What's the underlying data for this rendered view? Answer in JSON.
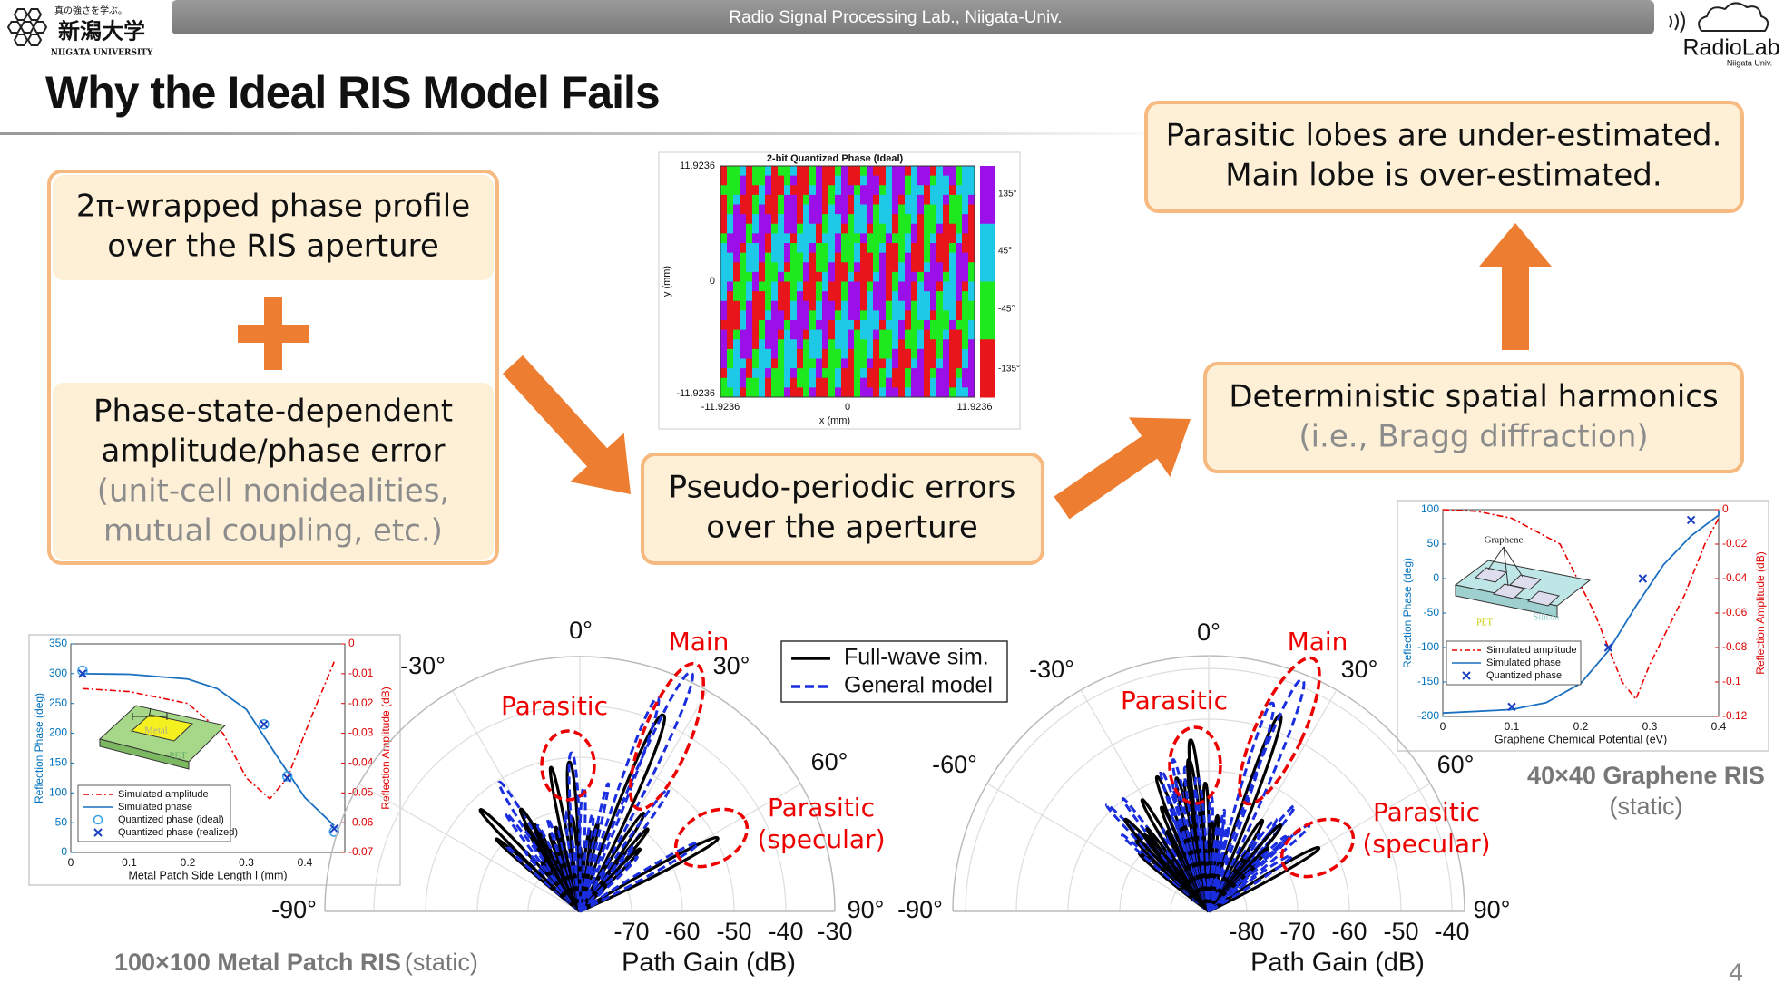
{
  "header": {
    "banner": "Radio Signal Processing Lab., Niigata-Univ.",
    "univ_motto": "真の強さを学ぶ。",
    "univ_name": "新潟大学",
    "univ_name_en": "NIIGATA UNIVERSITY",
    "lab_logo": "RadioLab",
    "lab_logo_sub": "Niigata Univ."
  },
  "title": "Why the Ideal RIS Model Fails",
  "boxes": {
    "profile": [
      "2π-wrapped phase profile",
      "over the RIS aperture"
    ],
    "error": [
      "Phase-state-dependent",
      "amplitude/phase error"
    ],
    "error_note": [
      "(unit-cell nonidealities,",
      "mutual coupling, etc.)"
    ],
    "pseudo": [
      "Pseudo-periodic errors",
      "over the aperture"
    ],
    "harmonics": "Deterministic spatial harmonics",
    "harmonics_note": "(i.e., Bragg diffraction)",
    "conclusion": [
      "Parasitic lobes are under-estimated.",
      "Main lobe is over-estimated."
    ]
  },
  "phase_map": {
    "title": "2-bit Quantized Phase (Ideal)",
    "x_label": "x (mm)",
    "y_label": "y (mm)",
    "y_ticks": [
      "11.9236",
      "0",
      "-11.9236"
    ],
    "x_ticks": [
      "-11.9236",
      "0",
      "11.9236"
    ],
    "colorbar_ticks": [
      "135°",
      "45°",
      "-45°",
      "-135°"
    ]
  },
  "metal_inset": {
    "y_ticks": [
      "350",
      "300",
      "250",
      "200",
      "150",
      "100",
      "50",
      "0"
    ],
    "y2_ticks": [
      "0",
      "-0.01",
      "-0.02",
      "-0.03",
      "-0.04",
      "-0.05",
      "-0.06",
      "-0.07"
    ],
    "x_ticks": [
      "0",
      "0.1",
      "0.2",
      "0.3",
      "0.4"
    ],
    "x_label": "Metal Patch Side Length l (mm)",
    "y_label": "Reflection Phase (deg)",
    "y2_label": "Reflection Amplitude (dB)",
    "legend": [
      "Simulated amplitude",
      "Simulated phase",
      "Quantized phase (ideal)",
      "Quantized phase (realized)"
    ],
    "drawing": {
      "metal": "Metal",
      "substrate": "PET",
      "length": "l"
    }
  },
  "graphene_inset": {
    "y_ticks": [
      "100",
      "50",
      "0",
      "-50",
      "-100",
      "-150",
      "-200"
    ],
    "y2_ticks": [
      "0",
      "-0.02",
      "-0.04",
      "-0.06",
      "-0.08",
      "-0.1",
      "-0.12"
    ],
    "x_ticks": [
      "0",
      "0.1",
      "0.2",
      "0.3",
      "0.4"
    ],
    "x_label": "Graphene Chemical Potential (eV)",
    "y_label": "Reflection Phase (deg)",
    "y2_label": "Reflection Amplitude (dB)",
    "legend": [
      "Simulated amplitude",
      "Simulated phase",
      "Quantized phase"
    ],
    "drawing": {
      "graphene": "Graphene",
      "substrate": "PET",
      "base": "Silicon"
    }
  },
  "polar_legend": [
    "Full-wave sim.",
    "General model"
  ],
  "polar_left": {
    "angle_labels": [
      "0°",
      "-30°",
      "30°",
      "60°",
      "-90°",
      "90°"
    ],
    "radial_ticks": [
      "-70",
      "-60",
      "-50",
      "-40",
      "-30"
    ],
    "axis_label": "Path Gain (dB)",
    "main": "Main",
    "parasitic": "Parasitic",
    "specular": [
      "Parasitic",
      "(specular)"
    ]
  },
  "polar_right": {
    "angle_labels": [
      "0°",
      "-30°",
      "30°",
      "-60°",
      "60°",
      "-90°",
      "90°"
    ],
    "radial_ticks": [
      "-80",
      "-70",
      "-60",
      "-50",
      "-40"
    ],
    "axis_label": "Path Gain (dB)",
    "main": "Main",
    "parasitic": "Parasitic",
    "specular": [
      "Parasitic",
      "(specular)"
    ]
  },
  "captions": {
    "metal": "100×100 Metal Patch RIS",
    "metal_note": "(static)",
    "graphene": "40×40 Graphene RIS",
    "graphene_note": "(static)"
  },
  "page_number": "4"
}
